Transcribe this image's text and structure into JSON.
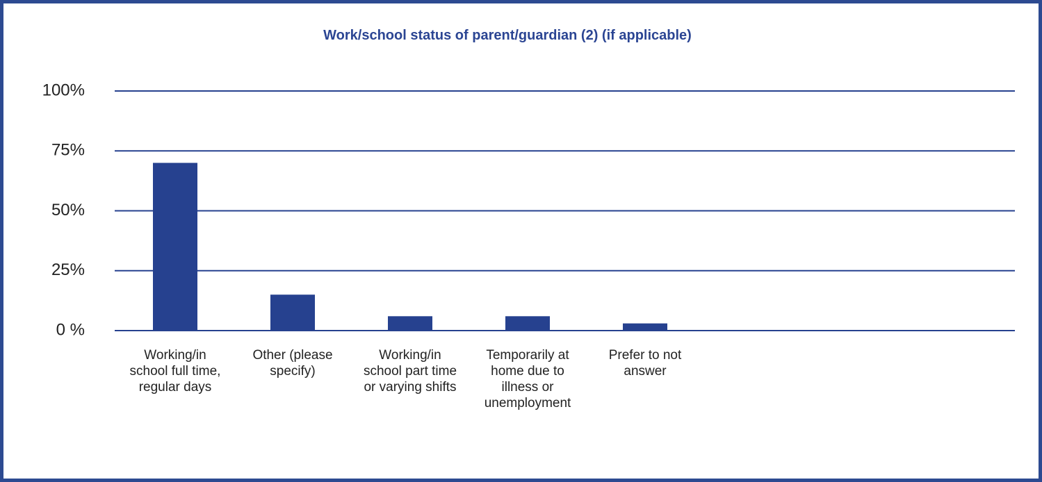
{
  "chart_data": {
    "type": "bar",
    "title": "Work/school status of parent/guardian (2) (if applicable)",
    "categories": [
      "Working/in school full time, regular days",
      "Other (please specify)",
      "Working/in school part time or varying shifts",
      "Temporarily at home due to illness or unemployment",
      "Prefer to not answer"
    ],
    "values": [
      70,
      15,
      6,
      6,
      3
    ],
    "color": "#26418f",
    "ylim": [
      0,
      100
    ],
    "yticks": [
      {
        "value": 0,
        "label": "0 %"
      },
      {
        "value": 25,
        "label": "25%"
      },
      {
        "value": 50,
        "label": "50%"
      },
      {
        "value": 75,
        "label": "75%"
      },
      {
        "value": 100,
        "label": "100%"
      }
    ],
    "grid": true
  }
}
